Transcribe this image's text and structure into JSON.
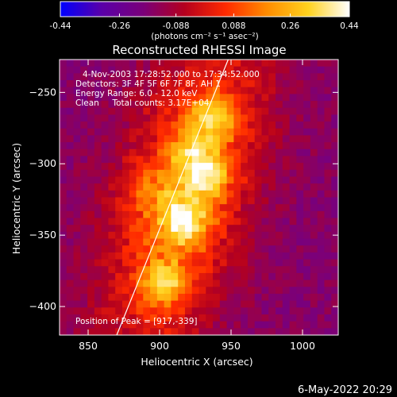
{
  "colorbar": {
    "ticks": [
      "-0.44",
      "-0.26",
      "-0.088",
      "0.088",
      "0.26",
      "0.44"
    ],
    "tick_values": [
      -0.44,
      -0.26,
      -0.088,
      0.088,
      0.26,
      0.44
    ],
    "range": [
      -0.44,
      0.44
    ],
    "unit_label": "(photons cm⁻² s⁻¹ asec⁻²)",
    "colormap": [
      "#0000ff",
      "#5a00a8",
      "#7a007a",
      "#b4001e",
      "#ff2a00",
      "#ff8c00",
      "#ffd21e",
      "#ffffff"
    ]
  },
  "chart_data": {
    "type": "heatmap",
    "title": "Reconstructed RHESSI Image",
    "xlabel": "Heliocentric X (arcsec)",
    "ylabel": "Heliocentric Y (arcsec)",
    "xlim": [
      830,
      1025
    ],
    "ylim": [
      -420,
      -227
    ],
    "xticks": [
      850,
      900,
      950,
      1000
    ],
    "yticks": [
      -250,
      -300,
      -350,
      -400
    ],
    "xtick_labels": [
      "850",
      "900",
      "950",
      "1000"
    ],
    "ytick_labels": [
      "−250",
      "−300",
      "−350",
      "−400"
    ],
    "annotations": [
      "4-Nov-2003 17:28:52.000 to 17:34:52.000",
      "Detectors: 3F 4F 5F 6F 7F 8F, AH 1",
      "Energy Range: 6.0 - 12.0 keV",
      "Clean     Total counts: 3.17E+04"
    ],
    "peak_label": "Position of Peak = [917,-339]",
    "peak_position": [
      917,
      -339
    ],
    "sources": [
      {
        "x": 917,
        "y": -339,
        "value": 0.44
      },
      {
        "x": 932,
        "y": -308,
        "value": 0.4
      },
      {
        "x": 938,
        "y": -268,
        "value": 0.36
      },
      {
        "x": 903,
        "y": -383,
        "value": 0.4
      },
      {
        "x": 891,
        "y": -318,
        "value": 0.18
      },
      {
        "x": 922,
        "y": -292,
        "value": 0.2
      }
    ],
    "limb_line": [
      [
        870,
        -420
      ],
      [
        948,
        -227
      ]
    ],
    "background_value": -0.16
  },
  "footer": {
    "date": "6-May-2022 20:29"
  }
}
